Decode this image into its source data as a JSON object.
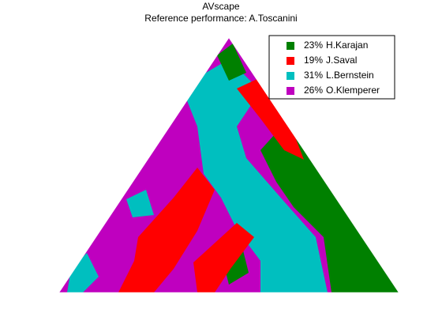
{
  "chart_data": {
    "type": "scape",
    "title": "AVscape",
    "subtitle": "Reference performance: A.Toscanini",
    "series": [
      {
        "name": "H.Karajan",
        "color": "#008000",
        "values": [
          23
        ],
        "value_labels": [
          "23%"
        ]
      },
      {
        "name": "J.Saval",
        "color": "#ff0000",
        "values": [
          19
        ],
        "value_labels": [
          "19%"
        ]
      },
      {
        "name": "L.Bernstein",
        "color": "#00bfbf",
        "values": [
          31
        ],
        "value_labels": [
          "31%"
        ]
      },
      {
        "name": "O.Klemperer",
        "color": "#bf00bf",
        "values": [
          26
        ],
        "value_labels": [
          "26%"
        ]
      }
    ],
    "legend": "upper right"
  }
}
